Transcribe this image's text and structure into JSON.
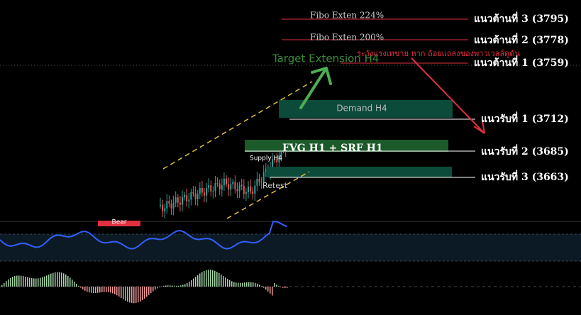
{
  "levels": [
    {
      "label": "แนวต้านที่ 3 (3795)"
    },
    {
      "label": "แนวต้านที่ 2 (3778)"
    },
    {
      "label": "แนวต้านที่ 1 (3759)"
    },
    {
      "label": "แนวรับที่ 1 (3712)"
    },
    {
      "label": "แนวรับที่ 2 (3685)"
    },
    {
      "label": "แนวรับที่ 3 (3663)"
    }
  ],
  "annotations": {
    "fibo_224": "Fibo Exten 224%",
    "fibo_200": "Fibo Exten 200%",
    "target": "Target Extension  H4",
    "warning": "ระวังแรงเทขาย หาก ถ้อยแถลงของพาวเวลล์ดูดัน",
    "demand": "Demand H4",
    "fvg": "FVG H1 + SRF H1",
    "supply": "Supply H4",
    "retest": "Retest",
    "bear": "Bear"
  }
}
